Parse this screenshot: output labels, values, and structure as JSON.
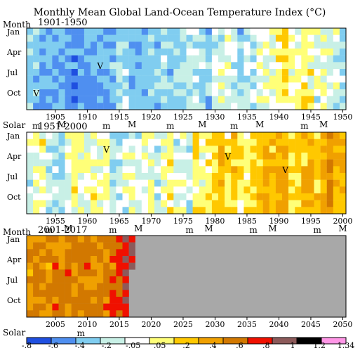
{
  "chart_data": {
    "type": "heatmap",
    "title": "Monthly Mean Global Land-Ocean Temperature Index (°C)",
    "month_axis_label": "Month",
    "solar_axis_label": "Solar",
    "month_ticks": [
      "Jan",
      "Apr",
      "Jul",
      "Oct"
    ],
    "colorbar": {
      "ticks": [
        "-.8",
        "-.6",
        "-.4",
        "-.2",
        "-.05",
        ".05",
        ".2",
        ".4",
        ".6",
        ".8",
        "1",
        "1.2",
        "1.34"
      ],
      "bin_edges": [
        -0.8,
        -0.6,
        -0.4,
        -0.2,
        -0.05,
        0.05,
        0.2,
        0.4,
        0.6,
        0.8,
        1.0,
        1.2,
        1.34
      ],
      "colors": [
        "#1f4fe0",
        "#4f8ff0",
        "#80cdf0",
        "#c8f0e6",
        "#ffffff",
        "#ffff78",
        "#ffc800",
        "#f0a000",
        "#d27800",
        "#f01000",
        "#8c5a5a",
        "#000000",
        "#ff96e6"
      ],
      "missing_color": "#a8a8a8"
    },
    "panels": [
      {
        "label": "1901-1950",
        "year_start": 1901,
        "year_end": 1950,
        "x_ticks": [
          "1905",
          "1910",
          "1915",
          "1920",
          "1925",
          "1930",
          "1935",
          "1940",
          "1945",
          "1950"
        ],
        "solar": [
          {
            "year": 1902,
            "label": "m"
          },
          {
            "year": 1906,
            "label": "M"
          },
          {
            "year": 1913,
            "label": "m"
          },
          {
            "year": 1917,
            "label": "M"
          },
          {
            "year": 1923,
            "label": "m"
          },
          {
            "year": 1928,
            "label": "M"
          },
          {
            "year": 1933,
            "label": "m"
          },
          {
            "year": 1937,
            "label": "M"
          },
          {
            "year": 1944,
            "label": "m"
          },
          {
            "year": 1947,
            "label": "M"
          }
        ],
        "volcano": [
          {
            "year": 1902,
            "month": 10,
            "label": "V"
          },
          {
            "year": 1912,
            "month": 6,
            "label": "V"
          }
        ],
        "profile": [
          -0.24,
          -0.3,
          -0.4,
          -0.46,
          -0.44,
          -0.35,
          -0.42,
          -0.5,
          -0.46,
          -0.44,
          -0.48,
          -0.35,
          -0.38,
          -0.33,
          -0.18,
          -0.12,
          -0.36,
          -0.4,
          -0.28,
          -0.26,
          -0.3,
          -0.2,
          -0.28,
          -0.26,
          -0.2,
          -0.1,
          -0.14,
          -0.18,
          -0.33,
          -0.08,
          -0.06,
          -0.01,
          -0.11,
          -0.28,
          -0.13,
          -0.16,
          -0.03,
          -0.02,
          -0.02,
          0.11,
          0.18,
          0.05,
          0.07,
          0.2,
          0.07,
          -0.06,
          -0.02,
          -0.05,
          -0.07,
          -0.17
        ]
      },
      {
        "label": "1951-2000",
        "year_start": 1951,
        "year_end": 2000,
        "x_ticks": [
          "1955",
          "1960",
          "1965",
          "1970",
          "1975",
          "1980",
          "1985",
          "1990",
          "1995",
          "2000"
        ],
        "solar": [
          {
            "year": 1954,
            "label": "m"
          },
          {
            "year": 1957,
            "label": "M"
          },
          {
            "year": 1964,
            "label": "m"
          },
          {
            "year": 1968,
            "label": "M"
          },
          {
            "year": 1976,
            "label": "m"
          },
          {
            "year": 1979,
            "label": "M"
          },
          {
            "year": 1986,
            "label": "m"
          },
          {
            "year": 1989,
            "label": "M"
          },
          {
            "year": 1996,
            "label": "m"
          },
          {
            "year": 2000,
            "label": "M"
          }
        ],
        "volcano": [
          {
            "year": 1963,
            "month": 3,
            "label": "V"
          },
          {
            "year": 1982,
            "month": 4,
            "label": "V"
          },
          {
            "year": 1991,
            "month": 6,
            "label": "V"
          }
        ],
        "profile": [
          -0.07,
          0.01,
          0.08,
          -0.13,
          -0.14,
          -0.2,
          -0.04,
          0.06,
          0.03,
          -0.03,
          0.06,
          0.03,
          0.05,
          -0.2,
          -0.11,
          -0.06,
          -0.02,
          -0.08,
          0.05,
          0.03,
          -0.08,
          0.01,
          0.16,
          -0.07,
          -0.01,
          -0.1,
          0.18,
          0.07,
          0.16,
          0.26,
          0.32,
          0.14,
          0.31,
          0.16,
          0.12,
          0.18,
          0.32,
          0.39,
          0.27,
          0.45,
          0.4,
          0.22,
          0.23,
          0.31,
          0.45,
          0.33,
          0.46,
          0.61,
          0.38,
          0.39
        ]
      },
      {
        "label": "2001-2017",
        "year_start": 2001,
        "year_end": 2050,
        "data_year_end": 2017,
        "last_month": 5,
        "x_ticks": [
          "2005",
          "2010",
          "2015",
          "2020",
          "2025",
          "2030",
          "2035",
          "2040",
          "2045",
          "2050"
        ],
        "solar": [
          {
            "year": 2009,
            "label": "m"
          }
        ],
        "volcano": [],
        "profile": [
          0.54,
          0.63,
          0.62,
          0.54,
          0.68,
          0.61,
          0.66,
          0.54,
          0.64,
          0.72,
          0.61,
          0.64,
          0.68,
          0.74,
          0.9,
          1.0,
          0.92
        ]
      }
    ]
  }
}
